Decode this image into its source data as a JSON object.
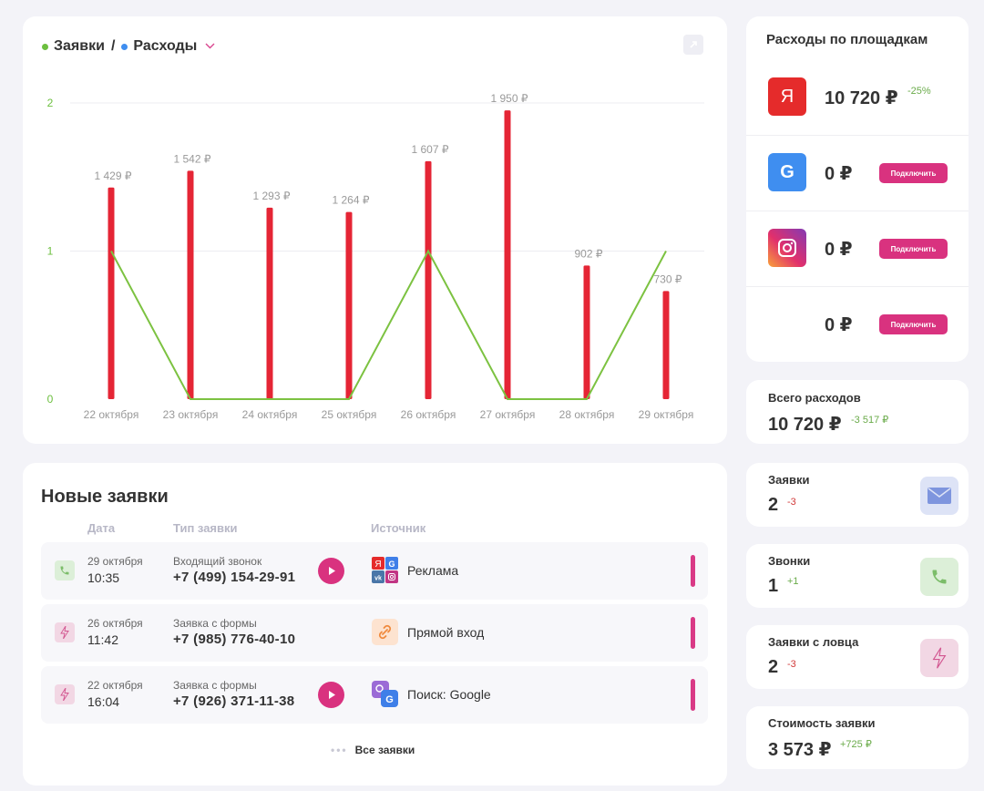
{
  "chart_header": {
    "series1_label": "Заявки",
    "separator": "/",
    "series2_label": "Расходы",
    "series1_color": "#6cbf3f",
    "series2_color": "#3f8ef0"
  },
  "chart_data": {
    "type": "bar",
    "categories": [
      "22 октября",
      "23 октября",
      "24 октября",
      "25 октября",
      "26 октября",
      "27 октября",
      "28 октября",
      "29 октября"
    ],
    "series": [
      {
        "name": "Расходы",
        "type": "bar",
        "color": "#e52535",
        "values": [
          1429,
          1542,
          1293,
          1264,
          1607,
          1950,
          902,
          730
        ],
        "labels": [
          "1 429 ₽",
          "1 542 ₽",
          "1 293 ₽",
          "1 264 ₽",
          "1 607 ₽",
          "1 950 ₽",
          "902 ₽",
          "730 ₽"
        ]
      },
      {
        "name": "Заявки",
        "type": "line",
        "color": "#7cc241",
        "values": [
          1,
          0,
          0,
          0,
          1,
          0,
          0,
          1
        ]
      }
    ],
    "y_ticks": [
      "0",
      "1",
      "2"
    ],
    "ylim": [
      0,
      2
    ],
    "bar_ylim": [
      0,
      2000
    ],
    "grid": true
  },
  "leads": {
    "title": "Новые заявки",
    "columns": {
      "date": "Дата",
      "type": "Тип заявки",
      "source": "Источник"
    },
    "rows": [
      {
        "icon": "phone-icon",
        "date": "29 октября",
        "time": "10:35",
        "type": "Входящий звонок",
        "phone": "+7 (499) 154-29-91",
        "has_play": true,
        "source_icon": "multi-source-icon",
        "source": "Реклама"
      },
      {
        "icon": "lightning-icon",
        "date": "26 октября",
        "time": "11:42",
        "type": "Заявка с формы",
        "phone": "+7 (985) 776-40-10",
        "has_play": false,
        "source_icon": "link-icon",
        "source": "Прямой вход"
      },
      {
        "icon": "lightning-icon",
        "date": "22 октября",
        "time": "16:04",
        "type": "Заявка с формы",
        "phone": "+7 (926) 371-11-38",
        "has_play": true,
        "source_icon": "search-google-icon",
        "source": "Поиск: Google"
      }
    ],
    "all_link": "Все заявки"
  },
  "platforms": {
    "title": "Расходы по площадкам",
    "items": [
      {
        "name": "yandex",
        "logo_text": "Я",
        "amount": "10 720 ₽",
        "change": "-25%",
        "connect": null
      },
      {
        "name": "google",
        "logo_text": "G",
        "amount": "0 ₽",
        "change": null,
        "connect": "Подключить"
      },
      {
        "name": "instagram",
        "logo_text": "",
        "amount": "0 ₽",
        "change": null,
        "connect": "Подключить"
      },
      {
        "name": "unknown",
        "logo_text": "",
        "amount": "0 ₽",
        "change": null,
        "connect": "Подключить"
      }
    ]
  },
  "total": {
    "label": "Всего расходов",
    "value": "10 720 ₽",
    "change": "-3 517 ₽"
  },
  "stats": [
    {
      "label": "Заявки",
      "value": "2",
      "change": "-3",
      "icon": "mail-icon"
    },
    {
      "label": "Звонки",
      "value": "1",
      "change": "+1",
      "icon": "phone-icon"
    },
    {
      "label": "Заявки с ловца",
      "value": "2",
      "change": "-3",
      "icon": "lightning-icon"
    },
    {
      "label": "Стоимость заявки",
      "value": "3 573 ₽",
      "change": "+725 ₽",
      "icon": null
    }
  ]
}
